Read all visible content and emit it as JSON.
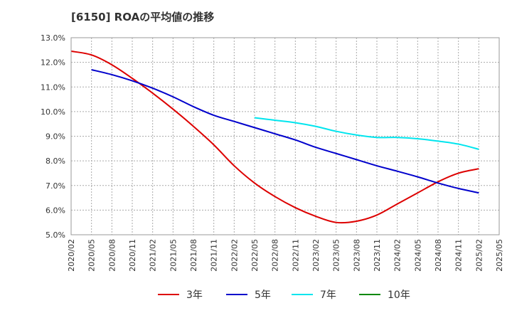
{
  "chart_data": {
    "type": "line",
    "title": "[6150]  ROAの平均値の推移",
    "x": [
      "2020/02",
      "2020/05",
      "2020/08",
      "2020/11",
      "2021/02",
      "2021/05",
      "2021/08",
      "2021/11",
      "2022/02",
      "2022/05",
      "2022/08",
      "2022/11",
      "2023/02",
      "2023/05",
      "2023/08",
      "2023/11",
      "2024/02",
      "2024/05",
      "2024/08",
      "2024/11",
      "2025/02",
      "2025/05"
    ],
    "y_ticks": [
      "5.0%",
      "6.0%",
      "7.0%",
      "8.0%",
      "9.0%",
      "10.0%",
      "11.0%",
      "12.0%",
      "13.0%"
    ],
    "ylim": [
      5.0,
      13.0
    ],
    "grid": true,
    "legend_position": "bottom",
    "series": [
      {
        "name": "3年",
        "color": "#dd0000",
        "values": [
          12.45,
          12.3,
          11.9,
          11.35,
          10.75,
          10.1,
          9.4,
          8.65,
          7.8,
          7.1,
          6.55,
          6.1,
          5.75,
          5.5,
          5.55,
          5.8,
          6.25,
          6.7,
          7.15,
          7.5,
          7.68,
          null
        ]
      },
      {
        "name": "5年",
        "color": "#0000cc",
        "values": [
          null,
          11.7,
          11.5,
          11.25,
          10.95,
          10.6,
          10.2,
          9.85,
          9.6,
          9.35,
          9.1,
          8.85,
          8.55,
          8.3,
          8.05,
          7.8,
          7.58,
          7.35,
          7.1,
          6.88,
          6.7,
          null
        ]
      },
      {
        "name": "7年",
        "color": "#00e5ee",
        "values": [
          null,
          null,
          null,
          null,
          null,
          null,
          null,
          null,
          null,
          9.75,
          9.65,
          9.55,
          9.4,
          9.2,
          9.05,
          8.95,
          8.95,
          8.9,
          8.8,
          8.68,
          8.47,
          null
        ]
      },
      {
        "name": "10年",
        "color": "#008800",
        "values": [
          null,
          null,
          null,
          null,
          null,
          null,
          null,
          null,
          null,
          null,
          null,
          null,
          null,
          null,
          null,
          null,
          null,
          null,
          null,
          null,
          null,
          null
        ]
      }
    ]
  }
}
